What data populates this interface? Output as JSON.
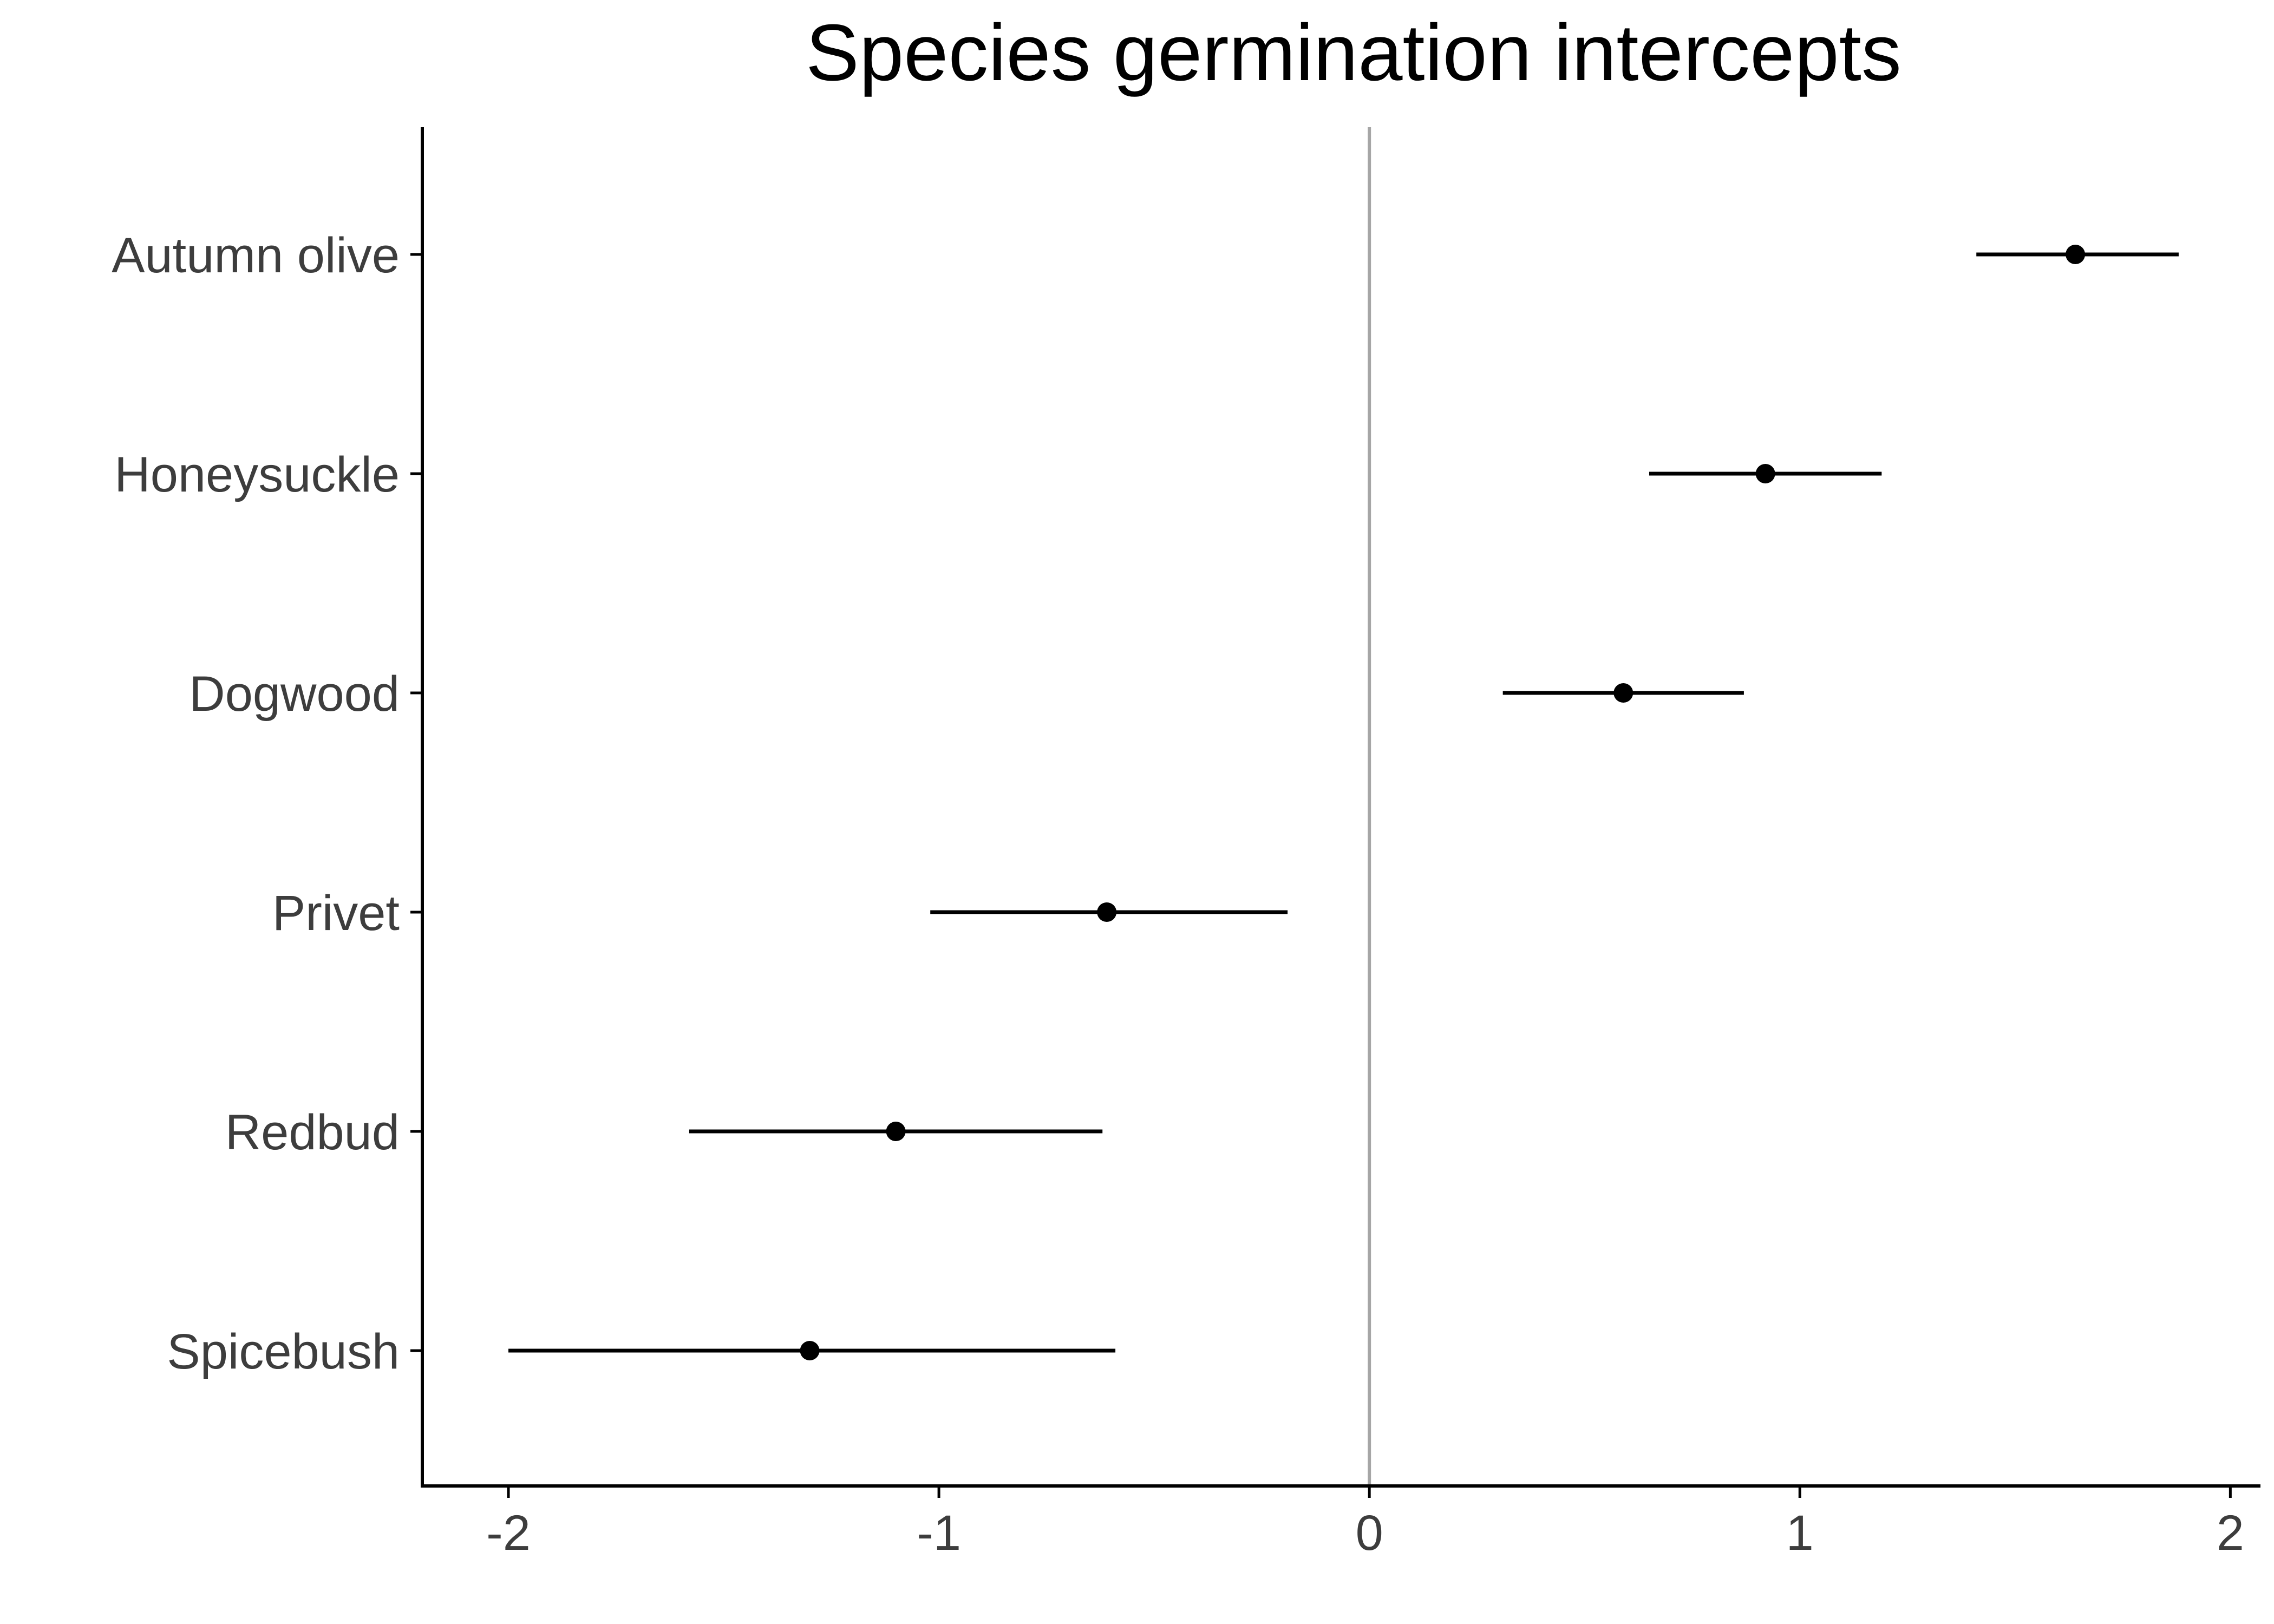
{
  "chart_data": {
    "type": "scatter",
    "title": "Species germination intercepts",
    "xlabel": "",
    "ylabel": "",
    "xlim": [
      -2.2,
      2.07
    ],
    "xticks": [
      "-2",
      "-1",
      "0",
      "1",
      "2"
    ],
    "reference_line_x": 0,
    "grid": false,
    "legend": "none",
    "categories": [
      "Autumn olive",
      "Honeysuckle",
      "Dogwood",
      "Privet",
      "Redbud",
      "Spicebush"
    ],
    "values": [
      1.64,
      0.92,
      0.59,
      -0.61,
      -1.1,
      -1.3
    ],
    "lower": [
      1.41,
      0.65,
      0.31,
      -1.02,
      -1.58,
      -2.0
    ],
    "upper": [
      1.88,
      1.19,
      0.87,
      -0.19,
      -0.62,
      -0.59
    ],
    "colors": {
      "point": "#000000",
      "reference_line": "#a6a6a6",
      "axis": "#000000",
      "tick_text": "#3d3d3d"
    }
  }
}
